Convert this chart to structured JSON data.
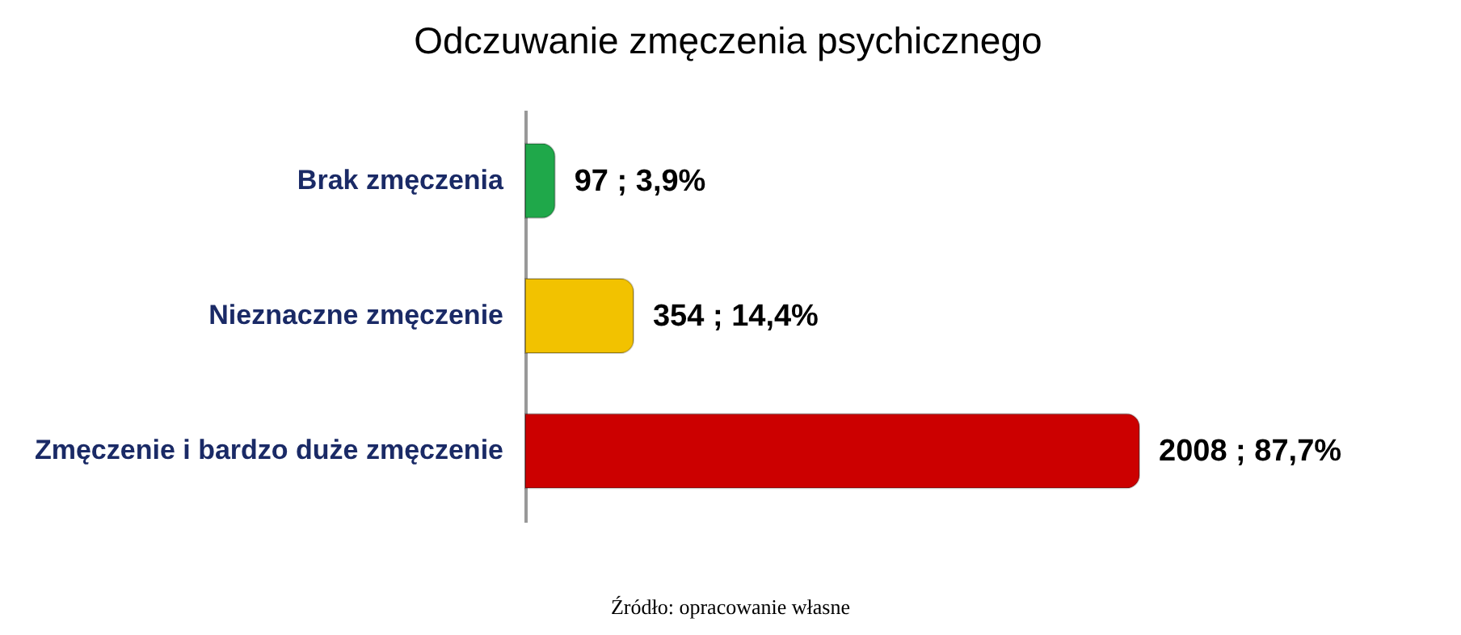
{
  "chart_data": {
    "type": "bar",
    "orientation": "horizontal",
    "title": "Odczuwanie zmęczenia psychicznego",
    "categories": [
      "Brak zmęczenia",
      "Nieznaczne zmęczenie",
      "Zmęczenie i bardzo duże zmęczenie"
    ],
    "values": [
      97,
      354,
      2008
    ],
    "colors": [
      "#1fa84a",
      "#f2c200",
      "#cc0000"
    ],
    "value_labels": [
      "97 ; 3,9%",
      "354 ; 14,4%",
      "2008 ; 87,7%"
    ],
    "annotations": [
      "Źródło: opracowanie własne"
    ]
  }
}
